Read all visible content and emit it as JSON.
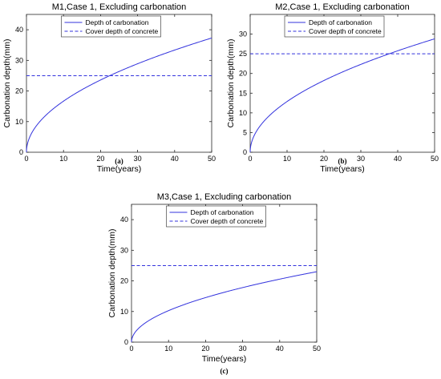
{
  "chart_data": [
    {
      "type": "line",
      "title": "M1,Case 1, Excluding carbonation",
      "xlabel": "Time(years)",
      "ylabel": "Carbonation depth(mm)",
      "xlim": [
        0,
        50
      ],
      "ylim": [
        0,
        45
      ],
      "xticks": [
        "0",
        "10",
        "20",
        "30",
        "40",
        "50"
      ],
      "yticks": [
        "0",
        "10",
        "20",
        "30",
        "40"
      ],
      "grid": false,
      "legend_position": "top-center",
      "caption": "(a)",
      "series": [
        {
          "name": "Depth of carbonation",
          "style": "solid",
          "color": "#3333dd",
          "model": "k*sqrt(t)",
          "x": [
            0,
            1,
            5,
            10,
            20,
            22.4,
            30,
            40,
            50
          ],
          "values": [
            0,
            5.3,
            11.8,
            16.7,
            23.6,
            25,
            28.9,
            33.4,
            37.3
          ]
        },
        {
          "name": "Cover depth of concrete",
          "style": "dashed",
          "color": "#3333dd",
          "x": [
            0,
            50
          ],
          "values": [
            25,
            25
          ]
        }
      ]
    },
    {
      "type": "line",
      "title": "M2,Case 1, Excluding carbonation",
      "xlabel": "Time(years)",
      "ylabel": "Carbonation depth(mm)",
      "xlim": [
        0,
        50
      ],
      "ylim": [
        0,
        35
      ],
      "xticks": [
        "0",
        "10",
        "20",
        "30",
        "40",
        "50"
      ],
      "yticks": [
        "0",
        "5",
        "10",
        "15",
        "20",
        "25",
        "30"
      ],
      "grid": false,
      "legend_position": "top-center",
      "caption": "(b)",
      "series": [
        {
          "name": "Depth of carbonation",
          "style": "solid",
          "color": "#3333dd",
          "model": "k*sqrt(t)",
          "x": [
            0,
            1,
            5,
            10,
            20,
            30,
            37.6,
            40,
            50
          ],
          "values": [
            0,
            4.1,
            9.1,
            12.9,
            18.2,
            22.3,
            25,
            25.8,
            28.8
          ]
        },
        {
          "name": "Cover depth of concrete",
          "style": "dashed",
          "color": "#3333dd",
          "x": [
            0,
            50
          ],
          "values": [
            25,
            25
          ]
        }
      ]
    },
    {
      "type": "line",
      "title": "M3,Case 1, Excluding carbonation",
      "xlabel": "Time(years)",
      "ylabel": "Carbonation depth(mm)",
      "xlim": [
        0,
        50
      ],
      "ylim": [
        0,
        45
      ],
      "xticks": [
        "0",
        "10",
        "20",
        "30",
        "40",
        "50"
      ],
      "yticks": [
        "0",
        "10",
        "20",
        "30",
        "40"
      ],
      "grid": false,
      "legend_position": "top-center",
      "caption": "(c)",
      "series": [
        {
          "name": "Depth of carbonation",
          "style": "solid",
          "color": "#3333dd",
          "model": "k*sqrt(t)",
          "x": [
            0,
            1,
            5,
            10,
            20,
            30,
            40,
            50
          ],
          "values": [
            0,
            3.3,
            7.3,
            10.3,
            14.6,
            17.9,
            20.6,
            23.0
          ]
        },
        {
          "name": "Cover depth of concrete",
          "style": "dashed",
          "color": "#3333dd",
          "x": [
            0,
            50
          ],
          "values": [
            25,
            25
          ]
        }
      ]
    }
  ]
}
